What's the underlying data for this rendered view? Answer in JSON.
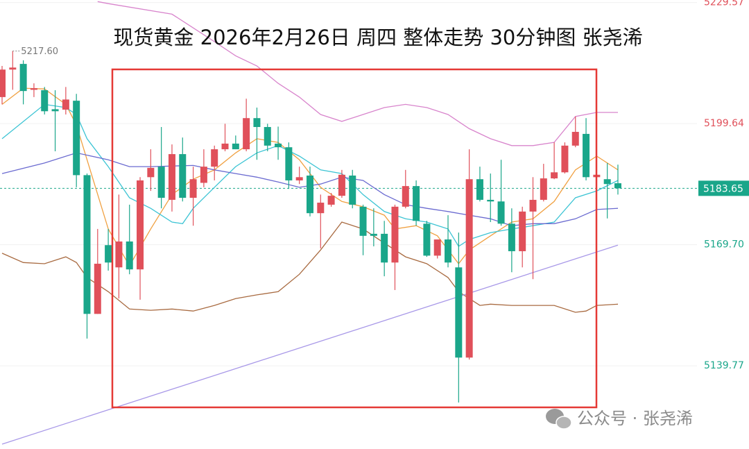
{
  "chart_data": {
    "type": "candlestick",
    "title": "现货黄金 2026年2月26日 周四 整体走势 30分钟图 张尧浠",
    "watermark": "公众号 · 张尧浠",
    "up_color": "#e0505a",
    "down_color": "#1aa68a",
    "grid": true,
    "ylim": [
      5119.2,
      5230.2
    ],
    "yticks": [
      5229.57,
      5199.64,
      {
        "value": 5169.7,
        "label": "5169.70"
      },
      5139.77
    ],
    "last_price": 5183.65,
    "max_marker": {
      "index": 1,
      "value": 5217.6,
      "label": "5217.60"
    },
    "open": [
      5206.2,
      5213.0,
      5214.4,
      5208.0,
      5207.9,
      5203.2,
      5203.1,
      5205.3,
      5186.9,
      5152.6,
      5169.6,
      5164.1,
      5170.5,
      5163.6,
      5186.4,
      5189.0,
      5180.8,
      5192.1,
      5181.3,
      5185.0,
      5189.0,
      5193.3,
      5194.7,
      5193.3,
      5201.0,
      5198.8,
      5194.7,
      5193.8,
      5185.6,
      5186.8,
      5177.5,
      5179.6,
      5181.8,
      5186.8,
      5179.1,
      5172.4,
      5172.4,
      5165.3,
      5179.1,
      5184.2,
      5174.9,
      5167.0,
      5171.0,
      5164.1,
      5141.8,
      5185.9,
      5180.8,
      5180.4,
      5174.9,
      5168.1,
      5177.9,
      5180.8,
      5186.1,
      5187.6,
      5194.2,
      5197.1,
      5186.4,
      5185.9,
      5184.9
    ],
    "high": [
      5213.9,
      5217.6,
      5215.3,
      5209.6,
      5208.7,
      5207.9,
      5208.7,
      5207.0,
      5187.3,
      5173.6,
      5173.6,
      5182.1,
      5179.6,
      5186.4,
      5193.3,
      5198.8,
      5194.5,
      5196.2,
      5189.0,
      5193.3,
      5194.2,
      5199.6,
      5196.7,
      5205.8,
      5203.6,
      5199.6,
      5198.9,
      5195.0,
      5189.0,
      5189.0,
      5182.1,
      5182.5,
      5188.2,
      5188.2,
      5179.6,
      5178.7,
      5175.6,
      5179.6,
      5188.2,
      5185.6,
      5175.6,
      5171.0,
      5177.0,
      5172.7,
      5193.3,
      5189.0,
      5187.3,
      5190.7,
      5178.7,
      5179.1,
      5186.4,
      5189.7,
      5195.0,
      5195.0,
      5201.4,
      5201.0,
      5187.3,
      5189.9,
      5189.5
    ],
    "low": [
      5204.4,
      5208.0,
      5204.4,
      5206.2,
      5201.9,
      5192.8,
      5201.9,
      5183.9,
      5146.5,
      5152.6,
      5163.3,
      5156.4,
      5162.4,
      5156.1,
      5183.0,
      5178.7,
      5177.9,
      5180.4,
      5174.4,
      5183.9,
      5185.6,
      5192.8,
      5193.3,
      5192.8,
      5190.7,
      5192.8,
      5190.7,
      5183.5,
      5184.7,
      5176.7,
      5168.8,
      5179.1,
      5181.3,
      5178.7,
      5167.1,
      5169.3,
      5161.9,
      5158.5,
      5178.7,
      5174.4,
      5166.7,
      5166.3,
      5164.1,
      5130.7,
      5141.3,
      5180.4,
      5175.3,
      5174.4,
      5162.9,
      5164.1,
      5161.2,
      5180.4,
      5185.9,
      5187.3,
      5193.8,
      5185.6,
      5185.2,
      5176.2,
      5182.1
    ],
    "close": [
      5213.0,
      5213.5,
      5207.7,
      5208.4,
      5202.7,
      5202.7,
      5205.6,
      5186.9,
      5152.6,
      5165.0,
      5165.3,
      5170.5,
      5163.6,
      5185.6,
      5188.7,
      5181.3,
      5192.1,
      5181.3,
      5185.9,
      5189.0,
      5193.3,
      5194.7,
      5193.3,
      5201.0,
      5198.8,
      5194.2,
      5193.8,
      5185.6,
      5186.4,
      5177.5,
      5180.1,
      5181.8,
      5187.0,
      5179.6,
      5171.9,
      5171.9,
      5165.3,
      5179.1,
      5184.2,
      5175.6,
      5167.0,
      5171.0,
      5165.3,
      5141.8,
      5185.9,
      5180.8,
      5180.4,
      5174.9,
      5168.1,
      5177.9,
      5180.8,
      5186.1,
      5187.6,
      5194.2,
      5197.6,
      5186.4,
      5187.0,
      5184.7,
      5183.65
    ],
    "overlays": [
      {
        "color": "#f0a040",
        "x": [
          0,
          2,
          4,
          6,
          7,
          8,
          10,
          12,
          14,
          16,
          18,
          20,
          22,
          24,
          26,
          28,
          30,
          32,
          34,
          36,
          37,
          39,
          41,
          43,
          44,
          46,
          48,
          50,
          52,
          54,
          56,
          58
        ],
        "values": [
          5204.4,
          5208.4,
          5208.2,
          5204.4,
          5199.3,
          5190.7,
          5173.6,
          5164.5,
          5173.6,
          5182.1,
          5185.9,
          5188.2,
          5192.4,
          5195.9,
          5195.0,
          5190.7,
          5183.9,
          5180.4,
          5179.1,
          5177.0,
          5173.6,
          5174.4,
          5171.9,
          5165.0,
          5168.4,
          5171.9,
          5175.3,
          5176.1,
          5180.4,
          5188.2,
          5191.6,
          5188.2
        ]
      },
      {
        "color": "#3cc4d4",
        "x": [
          0,
          4,
          6,
          7,
          8,
          10,
          12,
          14,
          16,
          17,
          18,
          20,
          22,
          24,
          26,
          28,
          30,
          32,
          34,
          36,
          38,
          40,
          42,
          43,
          44,
          46,
          48,
          50,
          52,
          54,
          56,
          58
        ],
        "values": [
          5195.9,
          5204.4,
          5203.6,
          5201.9,
          5195.9,
          5189.0,
          5181.3,
          5178.7,
          5175.3,
          5174.9,
          5178.7,
          5183.9,
          5189.0,
          5192.4,
          5194.2,
          5191.6,
          5188.2,
          5187.3,
          5182.1,
          5177.9,
          5176.1,
          5175.3,
          5173.6,
          5169.3,
          5171.0,
          5172.7,
          5173.6,
          5174.4,
          5175.3,
          5181.3,
          5183.0,
          5185.6
        ]
      },
      {
        "color": "#6a6ad0",
        "x": [
          0,
          4,
          7,
          10,
          12,
          14,
          18,
          20,
          22,
          24,
          26,
          28,
          30,
          32,
          34,
          36,
          38,
          40,
          42,
          44,
          46,
          48,
          50,
          52,
          54,
          56,
          58
        ],
        "values": [
          5187.3,
          5189.9,
          5192.4,
          5190.7,
          5189.0,
          5189.0,
          5189.3,
          5188.2,
          5187.3,
          5186.4,
          5185.2,
          5183.9,
          5184.7,
          5186.4,
          5185.6,
          5182.1,
          5179.6,
          5178.7,
          5177.9,
          5177.0,
          5176.1,
          5174.4,
          5174.9,
          5174.9,
          5176.1,
          5178.4,
          5178.7
        ]
      },
      {
        "color": "#d884cc",
        "x": [
          9,
          10,
          16,
          18,
          20,
          22,
          24,
          26,
          28,
          30,
          32,
          34,
          36,
          38,
          40,
          42,
          44,
          46,
          48,
          50,
          52,
          54,
          56,
          58
        ],
        "values": [
          5229.8,
          5229.3,
          5226.7,
          5223.3,
          5219.9,
          5216.4,
          5213.9,
          5209.6,
          5206.2,
          5201.9,
          5200.2,
          5201.9,
          5203.6,
          5204.4,
          5203.6,
          5201.9,
          5198.4,
          5195.9,
          5194.2,
          5194.2,
          5195.0,
          5201.4,
          5202.4,
          5202.4
        ]
      },
      {
        "color": "#a86a40",
        "x": [
          0,
          2,
          4,
          6,
          7,
          8,
          10,
          12,
          14,
          16,
          18,
          20,
          22,
          24,
          26,
          28,
          30,
          32,
          34,
          36,
          38,
          40,
          42,
          43,
          45,
          46,
          48,
          50,
          52,
          54,
          55,
          56,
          58
        ],
        "values": [
          5167.6,
          5165.3,
          5165.0,
          5166.7,
          5165.3,
          5161.6,
          5158.1,
          5153.8,
          5153.5,
          5153.8,
          5153.3,
          5154.7,
          5156.4,
          5157.3,
          5158.1,
          5162.4,
          5168.4,
          5175.3,
          5173.6,
          5170.1,
          5166.7,
          5165.0,
          5161.6,
          5158.1,
          5154.7,
          5155.0,
          5154.7,
          5154.7,
          5154.7,
          5153.0,
          5153.3,
          5154.7,
          5155.0
        ]
      },
      {
        "color": "#a898e8",
        "x": [
          0,
          58
        ],
        "values": [
          5120.4,
          5169.6
        ]
      }
    ]
  }
}
